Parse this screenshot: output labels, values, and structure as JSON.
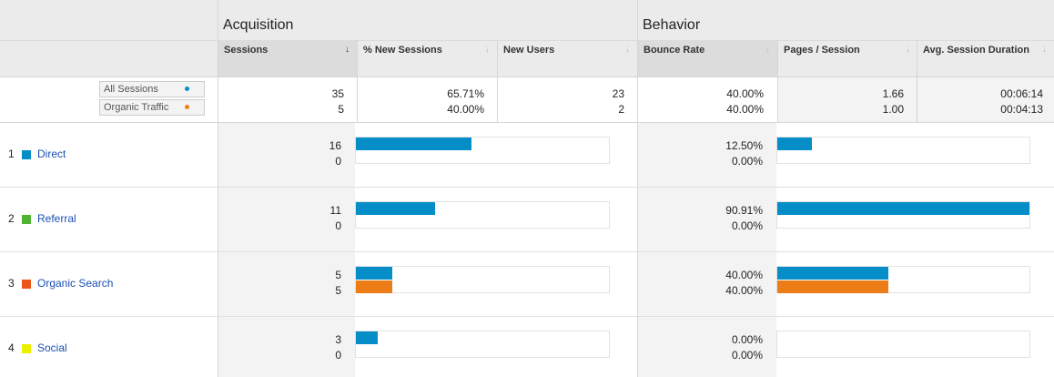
{
  "colors": {
    "segment1": "#058dc7",
    "segment2": "#ed7e17",
    "link": "#1a4fb3"
  },
  "header": {
    "acquisition_label": "Acquisition",
    "behavior_label": "Behavior",
    "columns": {
      "sessions": "Sessions",
      "new_sessions": "% New Sessions",
      "new_users": "New Users",
      "bounce_rate": "Bounce Rate",
      "pages_session": "Pages / Session",
      "avg_duration": "Avg. Session Duration"
    }
  },
  "segments": [
    {
      "label": "All Sessions",
      "color": "#058dc7"
    },
    {
      "label": "Organic Traffic",
      "color": "#ed7e17"
    }
  ],
  "totals": {
    "sessions": [
      "35",
      "5"
    ],
    "new_sessions": [
      "65.71%",
      "40.00%"
    ],
    "new_users": [
      "23",
      "2"
    ],
    "bounce_rate": [
      "40.00%",
      "40.00%"
    ],
    "pages_session": [
      "1.66",
      "1.00"
    ],
    "avg_duration": [
      "00:06:14",
      "00:04:13"
    ]
  },
  "rows": [
    {
      "num": "1",
      "label": "Direct",
      "swatch": "#058dc7",
      "sessions": [
        "16",
        "0"
      ],
      "bounce": [
        "12.50%",
        "0.00%"
      ],
      "sessions_fill": [
        0.457,
        0
      ],
      "bounce_fill": [
        0.1375,
        0
      ]
    },
    {
      "num": "2",
      "label": "Referral",
      "swatch": "#50b432",
      "sessions": [
        "11",
        "0"
      ],
      "bounce": [
        "90.91%",
        "0.00%"
      ],
      "sessions_fill": [
        0.314,
        0
      ],
      "bounce_fill": [
        1.0,
        0
      ]
    },
    {
      "num": "3",
      "label": "Organic Search",
      "swatch": "#ed561b",
      "sessions": [
        "5",
        "5"
      ],
      "bounce": [
        "40.00%",
        "40.00%"
      ],
      "sessions_fill": [
        0.143,
        0.143
      ],
      "bounce_fill": [
        0.44,
        0.44
      ]
    },
    {
      "num": "4",
      "label": "Social",
      "swatch": "#edef00",
      "sessions": [
        "3",
        "0"
      ],
      "bounce": [
        "0.00%",
        "0.00%"
      ],
      "sessions_fill": [
        0.086,
        0
      ],
      "bounce_fill": [
        0,
        0
      ]
    }
  ]
}
